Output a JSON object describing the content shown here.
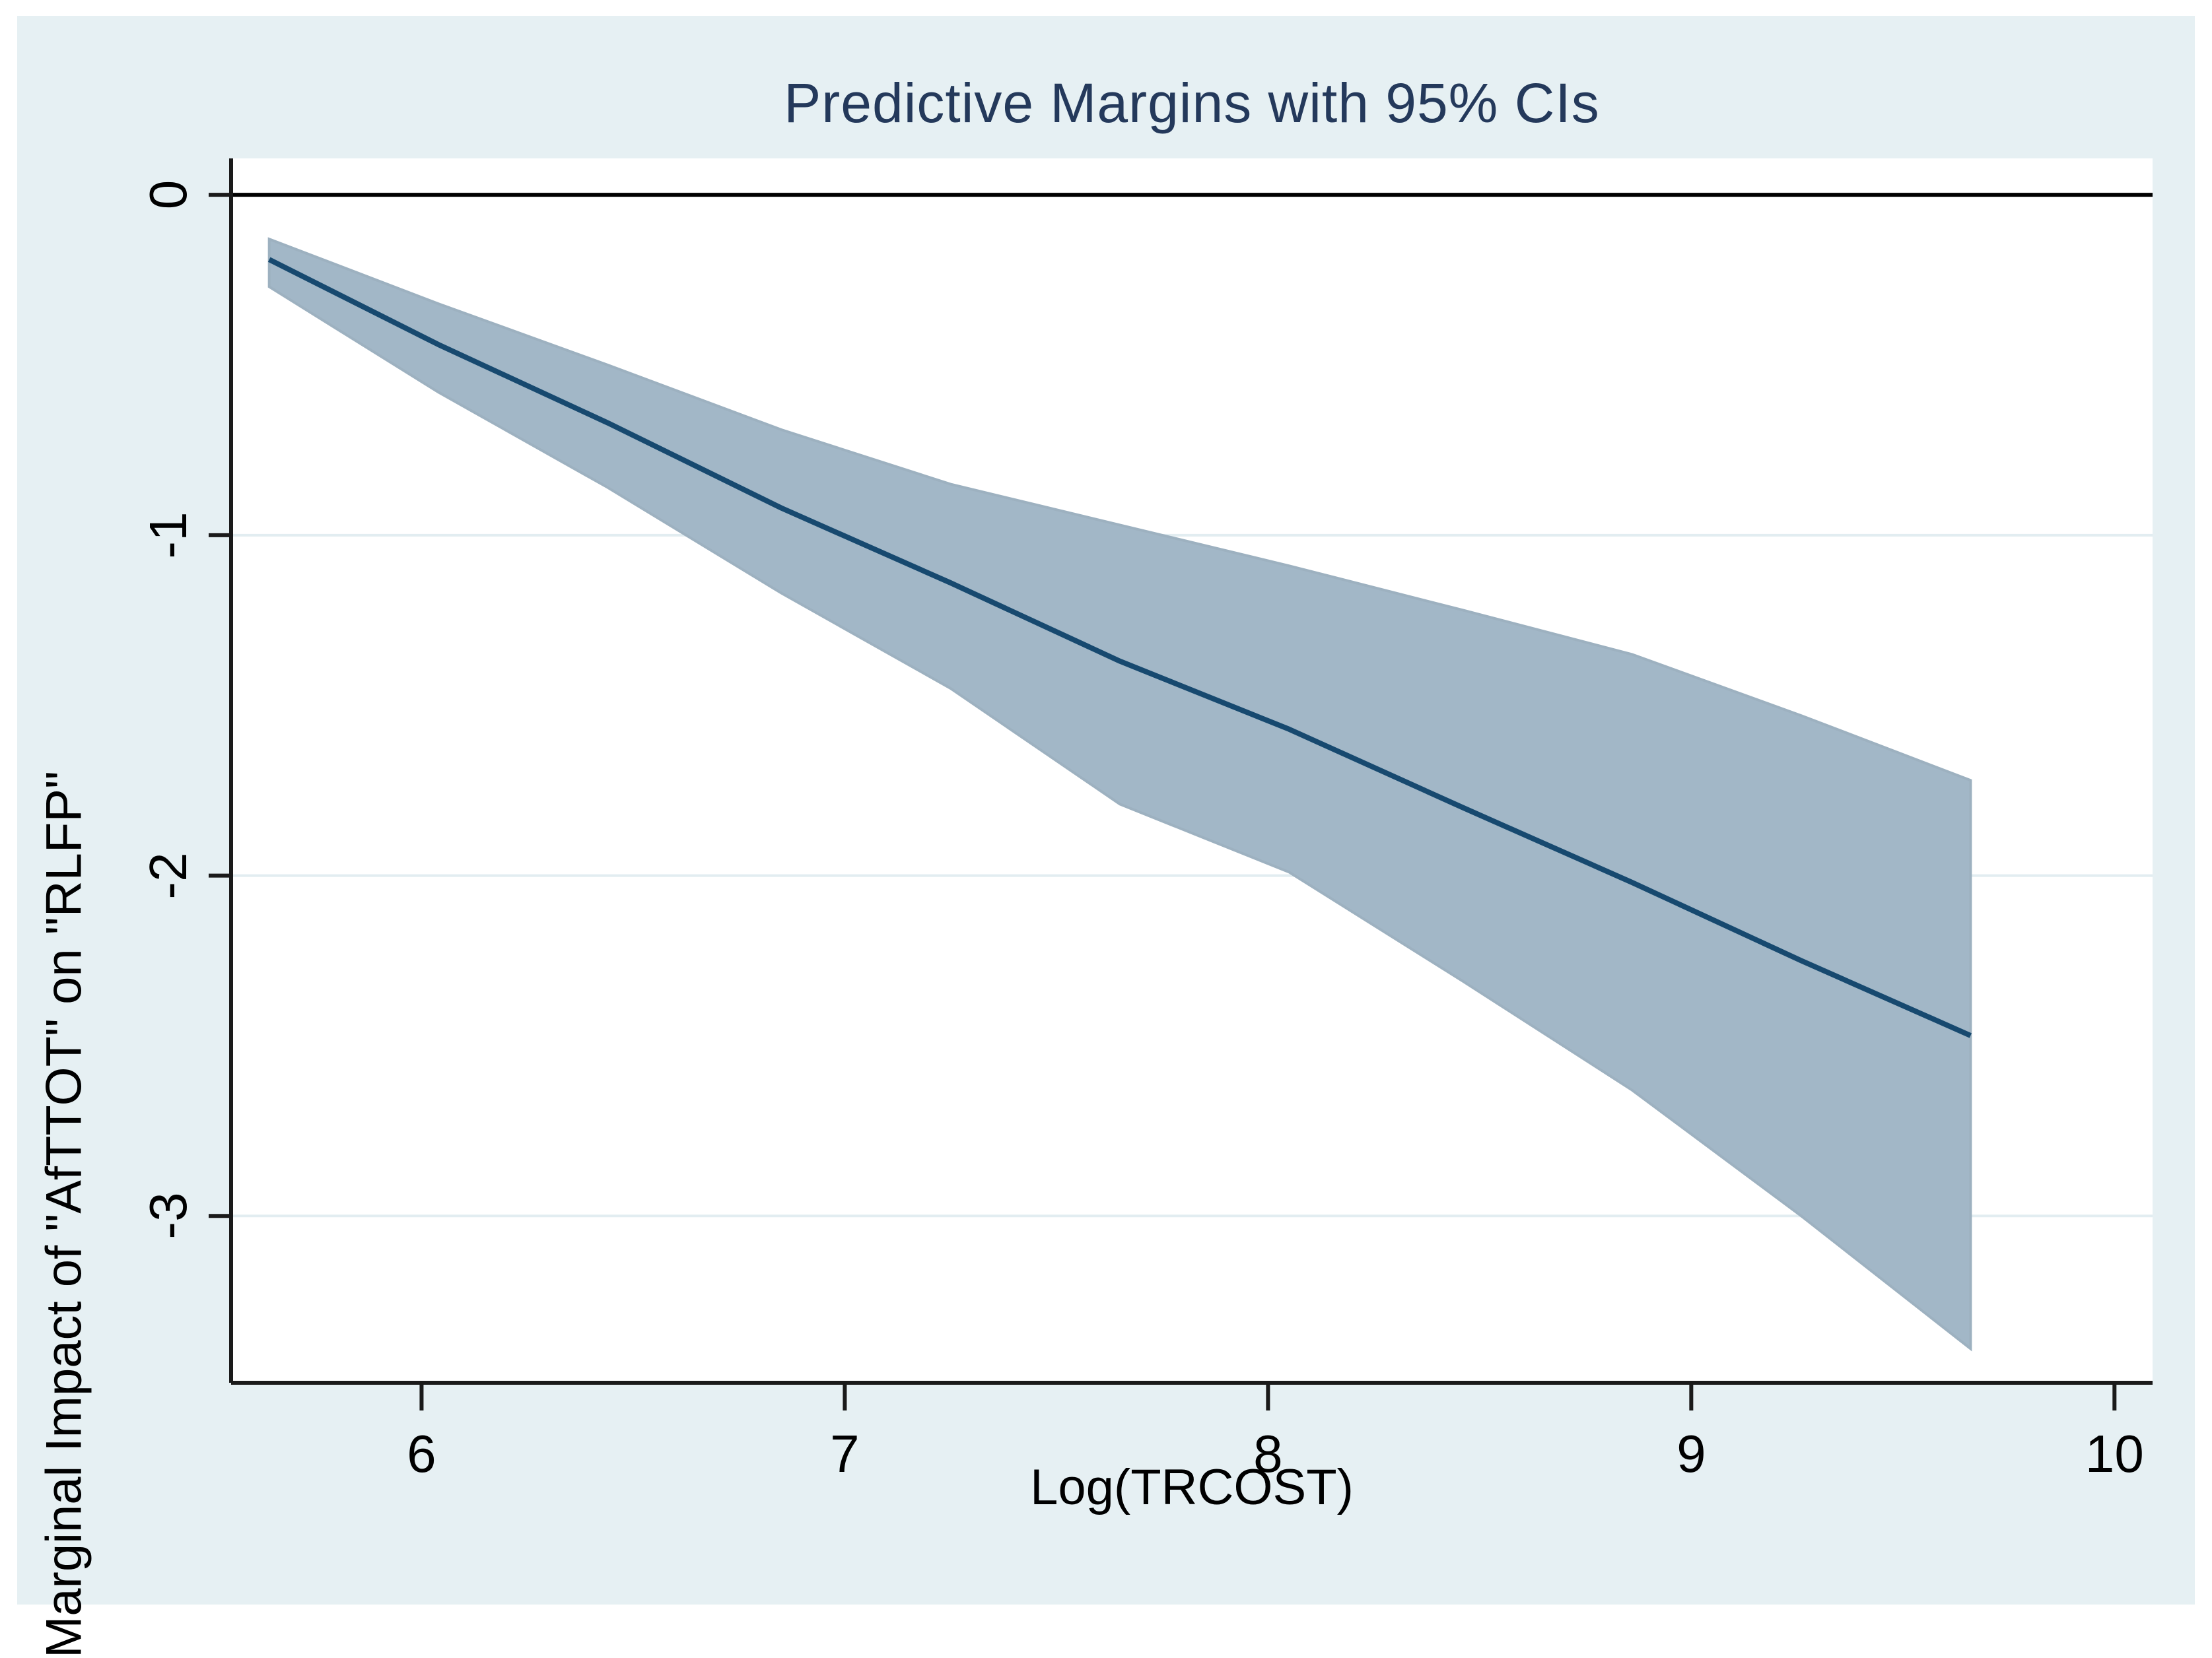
{
  "figure": {
    "title": "Predictive Margins with 95% CIs",
    "x_axis_label": "Log(TRCOST)",
    "y_axis_label": "Marginal Impact of \"AfTTOT\" on \"RLFP\""
  },
  "colors": {
    "canvas_background": "#e6f0f3",
    "plot_background": "#ffffff",
    "gridline": "#e2edf1",
    "zero_line": "#000000",
    "axis_line": "#1a1a1a",
    "tick_mark": "#1a1a1a",
    "ci_band_fill": "#a2b7c7",
    "ci_band_edge": "#9db1c0",
    "margin_line": "#17496f",
    "title_text": "#24395b",
    "label_text": "#000000"
  },
  "chart_data": {
    "type": "line",
    "title": "Predictive Margins with 95% CIs",
    "xlabel": "Log(TRCOST)",
    "ylabel": "Marginal Impact of \"AfTTOT\" on \"RLFP\"",
    "xlim": [
      5.55,
      10.09
    ],
    "ylim": [
      -3.49,
      0.107
    ],
    "x_ticks": [
      6,
      7,
      8,
      9,
      10
    ],
    "y_ticks": [
      0,
      -1,
      -2,
      -3
    ],
    "grid": "horizontal-only",
    "reference_line_y": 0,
    "legend_position": "none",
    "x": [
      5.64,
      6.04,
      6.44,
      6.85,
      7.25,
      7.65,
      8.05,
      8.46,
      8.86,
      9.26,
      9.66
    ],
    "series": [
      {
        "name": "Predictive margin",
        "values": [
          -0.19,
          -0.44,
          -0.67,
          -0.92,
          -1.14,
          -1.37,
          -1.57,
          -1.8,
          -2.02,
          -2.25,
          -2.47
        ]
      },
      {
        "name": "95% CI upper",
        "values": [
          -0.13,
          -0.32,
          -0.5,
          -0.69,
          -0.85,
          -0.97,
          -1.09,
          -1.22,
          -1.35,
          -1.53,
          -1.72
        ]
      },
      {
        "name": "95% CI lower",
        "values": [
          -0.27,
          -0.58,
          -0.86,
          -1.17,
          -1.45,
          -1.79,
          -1.99,
          -2.31,
          -2.63,
          -3.0,
          -3.39
        ]
      }
    ]
  },
  "layout_ticks": {
    "x_tick_labels": [
      "6",
      "7",
      "8",
      "9",
      "10"
    ],
    "y_tick_labels": [
      "0",
      "-1",
      "-2",
      "-3"
    ]
  }
}
